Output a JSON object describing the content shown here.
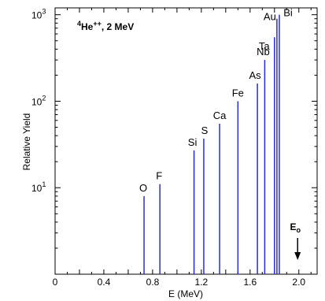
{
  "chart_data": {
    "type": "bar",
    "annotation": {
      "ion": "4He++",
      "energy": "2 MeV",
      "text": "4He++, 2 MeV"
    },
    "xlabel": "E (MeV)",
    "ylabel": "Relative Yield",
    "xlim": [
      0,
      2.15
    ],
    "ylim_log": [
      1,
      1200
    ],
    "log_y": true,
    "x_ticks": [
      "0",
      "0.4",
      "0.8",
      "1.2",
      "1.6",
      "2.0"
    ],
    "x_tick_values": [
      0,
      0.4,
      0.8,
      1.2,
      1.6,
      2.0
    ],
    "y_ticks": [
      {
        "base": "10",
        "exp": "1",
        "value": 10
      },
      {
        "base": "10",
        "exp": "2",
        "value": 100
      },
      {
        "base": "10",
        "exp": "3",
        "value": 1000
      }
    ],
    "series_color": "#2a2ae0",
    "peaks": [
      {
        "element": "O",
        "energy": 0.73,
        "yield": 8
      },
      {
        "element": "F",
        "energy": 0.86,
        "yield": 11
      },
      {
        "element": "Si",
        "energy": 1.14,
        "yield": 27
      },
      {
        "element": "S",
        "energy": 1.22,
        "yield": 37
      },
      {
        "element": "Ca",
        "energy": 1.35,
        "yield": 55
      },
      {
        "element": "Fe",
        "energy": 1.5,
        "yield": 100
      },
      {
        "element": "As",
        "energy": 1.66,
        "yield": 160
      },
      {
        "element": "Nb",
        "energy": 1.72,
        "yield": 300
      },
      {
        "element": "Ta",
        "energy": 1.8,
        "yield": 550
      },
      {
        "element": "Au",
        "energy": 1.82,
        "yield": 900
      },
      {
        "element": "Bi",
        "energy": 1.84,
        "yield": 1000
      }
    ],
    "e0_marker": {
      "label": "E",
      "subscript": "o",
      "energy": 1.99
    }
  }
}
